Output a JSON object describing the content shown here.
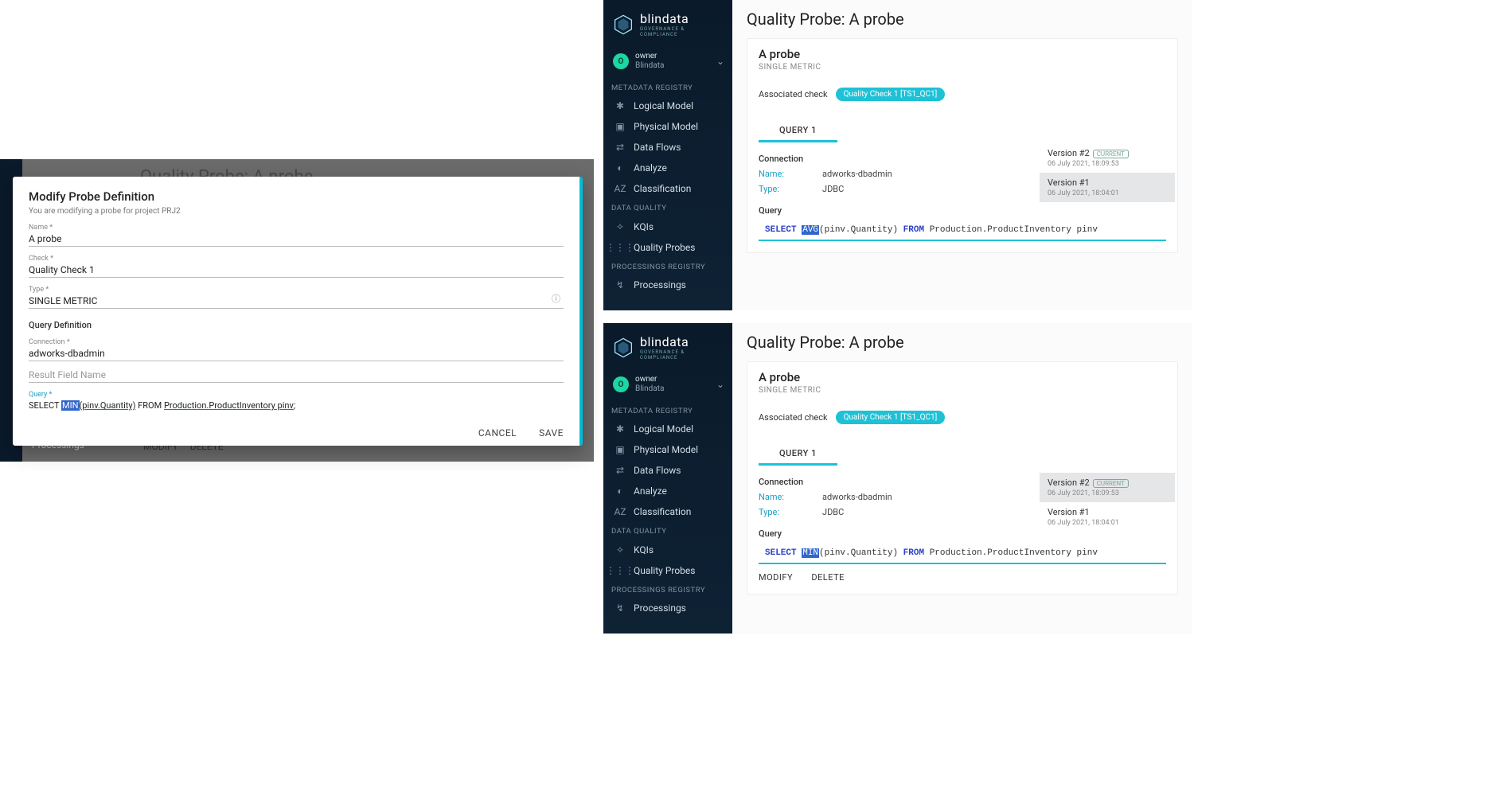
{
  "modal": {
    "backdrop_peek_title": "Quality Probe: A probe",
    "backdrop_peek_modify": "MODIFY",
    "backdrop_peek_delete": "DELETE",
    "backdrop_peek_proc": "Processings",
    "title": "Modify Probe Definition",
    "subtitle": "You are modifying a probe for project PRJ2",
    "name_label": "Name *",
    "name_value": "A probe",
    "check_label": "Check *",
    "check_value": "Quality Check 1",
    "type_label": "Type *",
    "type_value": "SINGLE METRIC",
    "section_query_def": "Query Definition",
    "connection_label": "Connection *",
    "connection_value": "adworks-dbadmin",
    "result_field_label": "Result Field Name",
    "query_label": "Query *",
    "query_select": "SELECT ",
    "query_fn": "MIN",
    "query_arg": "(pinv.Quantity)",
    "query_from": " FROM ",
    "query_table": "Production.ProductInventory pinv",
    "query_semi": ";",
    "cancel": "CANCEL",
    "save": "SAVE"
  },
  "panels": [
    {
      "page_title": "Quality Probe: A probe",
      "probe_name": "A probe",
      "probe_type": "SINGLE METRIC",
      "assoc_label": "Associated check",
      "chip": "Quality Check 1 [TS1_QC1]",
      "tab": "QUERY 1",
      "conn_header": "Connection",
      "conn_name_k": "Name:",
      "conn_name_v": "adworks-dbadmin",
      "conn_type_k": "Type:",
      "conn_type_v": "JDBC",
      "query_header": "Query",
      "q_select": "SELECT",
      "q_fn": "AVG",
      "q_arg": "(pinv.Quantity)",
      "q_from": "FROM",
      "q_table": "Production.ProductInventory pinv",
      "versions": [
        {
          "name": "Version #2",
          "current": "CURRENT",
          "date": "06 July 2021, 18:09:53",
          "selected": false
        },
        {
          "name": "Version #1",
          "current": "",
          "date": "06 July 2021, 18:04:01",
          "selected": true
        }
      ]
    },
    {
      "page_title": "Quality Probe: A probe",
      "probe_name": "A probe",
      "probe_type": "SINGLE METRIC",
      "assoc_label": "Associated check",
      "chip": "Quality Check 1 [TS1_QC1]",
      "tab": "QUERY 1",
      "conn_header": "Connection",
      "conn_name_k": "Name:",
      "conn_name_v": "adworks-dbadmin",
      "conn_type_k": "Type:",
      "conn_type_v": "JDBC",
      "query_header": "Query",
      "q_select": "SELECT",
      "q_fn": "MIN",
      "q_arg": "(pinv.Quantity)",
      "q_from": "FROM",
      "q_table": "Production.ProductInventory pinv",
      "modify": "MODIFY",
      "delete": "DELETE",
      "versions": [
        {
          "name": "Version #2",
          "current": "CURRENT",
          "date": "06 July 2021, 18:09:53",
          "selected": true
        },
        {
          "name": "Version #1",
          "current": "",
          "date": "06 July 2021, 18:04:01",
          "selected": false
        }
      ]
    }
  ],
  "sidebar": {
    "brand": "blindata",
    "brand_sub": "GOVERNANCE & COMPLIANCE",
    "user": "owner",
    "org": "Blindata",
    "avatar_letter": "O",
    "section_meta": "METADATA REGISTRY",
    "section_dq": "DATA QUALITY",
    "section_proc": "PROCESSINGS REGISTRY",
    "items_meta": [
      {
        "icon": "✱",
        "label": "Logical Model"
      },
      {
        "icon": "▣",
        "label": "Physical Model"
      },
      {
        "icon": "⇄",
        "label": "Data Flows"
      },
      {
        "icon": "◐",
        "label": "Analyze"
      },
      {
        "icon": "AZ",
        "label": "Classification"
      }
    ],
    "items_dq": [
      {
        "icon": "⟡",
        "label": "KQIs"
      },
      {
        "icon": "⋮⋮⋮",
        "label": "Quality Probes"
      }
    ],
    "items_proc": [
      {
        "icon": "↯",
        "label": "Processings"
      }
    ]
  }
}
